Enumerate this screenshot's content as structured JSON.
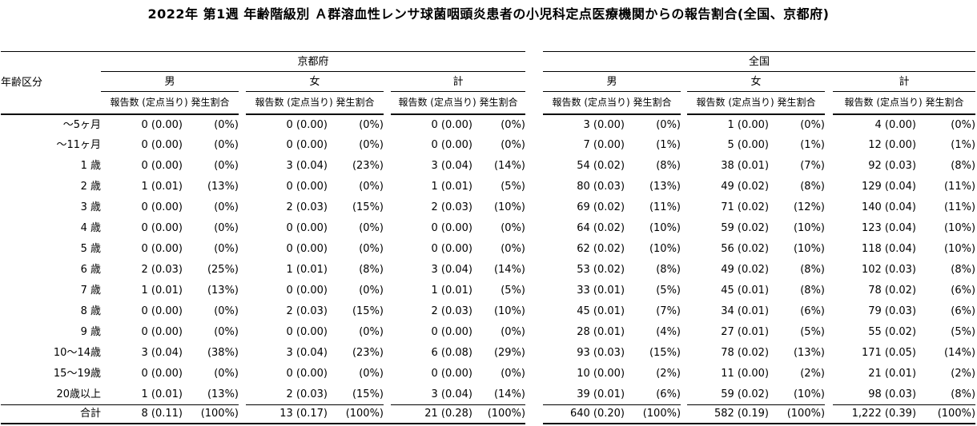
{
  "title": "2022年 第1週 年齢階級別 Ａ群溶血性レンサ球菌咽頭炎患者の小児科定点医療機関からの報告割合(全国、京都府)",
  "table": {
    "age_header": "年齢区分",
    "sections": {
      "left": "京都府",
      "right": "全国"
    },
    "genders": [
      "男",
      "女",
      "計"
    ],
    "count_label": "報告数 (定点当り)",
    "pct_label": "発生割合",
    "rows": [
      {
        "age": "～5ヶ月",
        "values": [
          [
            "0 (0.00)",
            "(0%)"
          ],
          [
            "0 (0.00)",
            "(0%)"
          ],
          [
            "0 (0.00)",
            "(0%)"
          ],
          [
            "3 (0.00)",
            "(0%)"
          ],
          [
            "1 (0.00)",
            "(0%)"
          ],
          [
            "4 (0.00)",
            "(0%)"
          ]
        ]
      },
      {
        "age": "～11ヶ月",
        "values": [
          [
            "0 (0.00)",
            "(0%)"
          ],
          [
            "0 (0.00)",
            "(0%)"
          ],
          [
            "0 (0.00)",
            "(0%)"
          ],
          [
            "7 (0.00)",
            "(1%)"
          ],
          [
            "5 (0.00)",
            "(1%)"
          ],
          [
            "12 (0.00)",
            "(1%)"
          ]
        ]
      },
      {
        "age": "1 歳",
        "values": [
          [
            "0 (0.00)",
            "(0%)"
          ],
          [
            "3 (0.04)",
            "(23%)"
          ],
          [
            "3 (0.04)",
            "(14%)"
          ],
          [
            "54 (0.02)",
            "(8%)"
          ],
          [
            "38 (0.01)",
            "(7%)"
          ],
          [
            "92 (0.03)",
            "(8%)"
          ]
        ]
      },
      {
        "age": "2 歳",
        "values": [
          [
            "1 (0.01)",
            "(13%)"
          ],
          [
            "0 (0.00)",
            "(0%)"
          ],
          [
            "1 (0.01)",
            "(5%)"
          ],
          [
            "80 (0.03)",
            "(13%)"
          ],
          [
            "49 (0.02)",
            "(8%)"
          ],
          [
            "129 (0.04)",
            "(11%)"
          ]
        ]
      },
      {
        "age": "3 歳",
        "values": [
          [
            "0 (0.00)",
            "(0%)"
          ],
          [
            "2 (0.03)",
            "(15%)"
          ],
          [
            "2 (0.03)",
            "(10%)"
          ],
          [
            "69 (0.02)",
            "(11%)"
          ],
          [
            "71 (0.02)",
            "(12%)"
          ],
          [
            "140 (0.04)",
            "(11%)"
          ]
        ]
      },
      {
        "age": "4 歳",
        "values": [
          [
            "0 (0.00)",
            "(0%)"
          ],
          [
            "0 (0.00)",
            "(0%)"
          ],
          [
            "0 (0.00)",
            "(0%)"
          ],
          [
            "64 (0.02)",
            "(10%)"
          ],
          [
            "59 (0.02)",
            "(10%)"
          ],
          [
            "123 (0.04)",
            "(10%)"
          ]
        ]
      },
      {
        "age": "5 歳",
        "values": [
          [
            "0 (0.00)",
            "(0%)"
          ],
          [
            "0 (0.00)",
            "(0%)"
          ],
          [
            "0 (0.00)",
            "(0%)"
          ],
          [
            "62 (0.02)",
            "(10%)"
          ],
          [
            "56 (0.02)",
            "(10%)"
          ],
          [
            "118 (0.04)",
            "(10%)"
          ]
        ]
      },
      {
        "age": "6 歳",
        "values": [
          [
            "2 (0.03)",
            "(25%)"
          ],
          [
            "1 (0.01)",
            "(8%)"
          ],
          [
            "3 (0.04)",
            "(14%)"
          ],
          [
            "53 (0.02)",
            "(8%)"
          ],
          [
            "49 (0.02)",
            "(8%)"
          ],
          [
            "102 (0.03)",
            "(8%)"
          ]
        ]
      },
      {
        "age": "7 歳",
        "values": [
          [
            "1 (0.01)",
            "(13%)"
          ],
          [
            "0 (0.00)",
            "(0%)"
          ],
          [
            "1 (0.01)",
            "(5%)"
          ],
          [
            "33 (0.01)",
            "(5%)"
          ],
          [
            "45 (0.01)",
            "(8%)"
          ],
          [
            "78 (0.02)",
            "(6%)"
          ]
        ]
      },
      {
        "age": "8 歳",
        "values": [
          [
            "0 (0.00)",
            "(0%)"
          ],
          [
            "2 (0.03)",
            "(15%)"
          ],
          [
            "2 (0.03)",
            "(10%)"
          ],
          [
            "45 (0.01)",
            "(7%)"
          ],
          [
            "34 (0.01)",
            "(6%)"
          ],
          [
            "79 (0.03)",
            "(6%)"
          ]
        ]
      },
      {
        "age": "9 歳",
        "values": [
          [
            "0 (0.00)",
            "(0%)"
          ],
          [
            "0 (0.00)",
            "(0%)"
          ],
          [
            "0 (0.00)",
            "(0%)"
          ],
          [
            "28 (0.01)",
            "(4%)"
          ],
          [
            "27 (0.01)",
            "(5%)"
          ],
          [
            "55 (0.02)",
            "(5%)"
          ]
        ]
      },
      {
        "age": "10～14歳",
        "values": [
          [
            "3 (0.04)",
            "(38%)"
          ],
          [
            "3 (0.04)",
            "(23%)"
          ],
          [
            "6 (0.08)",
            "(29%)"
          ],
          [
            "93 (0.03)",
            "(15%)"
          ],
          [
            "78 (0.02)",
            "(13%)"
          ],
          [
            "171 (0.05)",
            "(14%)"
          ]
        ]
      },
      {
        "age": "15～19歳",
        "values": [
          [
            "0 (0.00)",
            "(0%)"
          ],
          [
            "0 (0.00)",
            "(0%)"
          ],
          [
            "0 (0.00)",
            "(0%)"
          ],
          [
            "10 (0.00)",
            "(2%)"
          ],
          [
            "11 (0.00)",
            "(2%)"
          ],
          [
            "21 (0.01)",
            "(2%)"
          ]
        ]
      },
      {
        "age": "20歳以上",
        "values": [
          [
            "1 (0.01)",
            "(13%)"
          ],
          [
            "2 (0.03)",
            "(15%)"
          ],
          [
            "3 (0.04)",
            "(14%)"
          ],
          [
            "39 (0.01)",
            "(6%)"
          ],
          [
            "59 (0.02)",
            "(10%)"
          ],
          [
            "98 (0.03)",
            "(8%)"
          ]
        ]
      }
    ],
    "total": {
      "age": "合計",
      "values": [
        [
          "8 (0.11)",
          "(100%)"
        ],
        [
          "13 (0.17)",
          "(100%)"
        ],
        [
          "21 (0.28)",
          "(100%)"
        ],
        [
          "640 (0.20)",
          "(100%)"
        ],
        [
          "582 (0.19)",
          "(100%)"
        ],
        [
          "1,222 (0.39)",
          "(100%)"
        ]
      ]
    }
  }
}
